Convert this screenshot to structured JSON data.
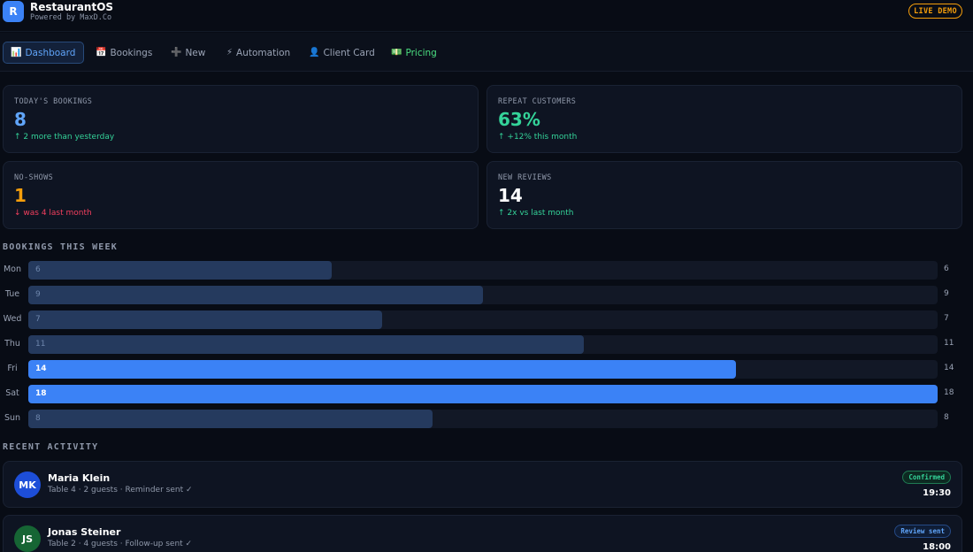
{
  "app": {
    "logo_letter": "R",
    "title": "RestaurantOS",
    "subtitle": "Powered by MaxD.Co",
    "live_badge": "LIVE DEMO"
  },
  "nav": {
    "tabs": [
      {
        "icon": "📊",
        "label": "Dashboard"
      },
      {
        "icon": "📅",
        "label": "Bookings"
      },
      {
        "icon": "➕",
        "label": "New"
      },
      {
        "icon": "⚡",
        "label": "Automation"
      },
      {
        "icon": "👤",
        "label": "Client Card"
      },
      {
        "icon": "💵",
        "label": "Pricing"
      }
    ],
    "active_tab": "Dashboard"
  },
  "stats": [
    {
      "label": "TODAY'S BOOKINGS",
      "value": "8",
      "delta": "↑ 2 more than yesterday"
    },
    {
      "label": "REPEAT CUSTOMERS",
      "value": "63%",
      "delta": "↑ +12% this month"
    },
    {
      "label": "NO-SHOWS",
      "value": "1",
      "delta": "↓ was 4 last month"
    },
    {
      "label": "NEW REVIEWS",
      "value": "14",
      "delta": "↑ 2x vs last month"
    }
  ],
  "week": {
    "title": "BOOKINGS THIS WEEK",
    "max": 18,
    "days": [
      {
        "day": "Mon",
        "value": 6,
        "highlight": false
      },
      {
        "day": "Tue",
        "value": 9,
        "highlight": false
      },
      {
        "day": "Wed",
        "value": 7,
        "highlight": false
      },
      {
        "day": "Thu",
        "value": 11,
        "highlight": false
      },
      {
        "day": "Fri",
        "value": 14,
        "highlight": true
      },
      {
        "day": "Sat",
        "value": 18,
        "highlight": true
      },
      {
        "day": "Sun",
        "value": 8,
        "highlight": false
      }
    ]
  },
  "activity": {
    "title": "RECENT ACTIVITY",
    "items": [
      {
        "initials": "MK",
        "name": "Maria Klein",
        "detail": "Table 4 · 2 guests · Reminder sent ✓",
        "status": "Confirmed",
        "time": "19:30",
        "avatar_color": "#1d4ed8"
      },
      {
        "initials": "JS",
        "name": "Jonas Steiner",
        "detail": "Table 2 · 4 guests · Follow-up sent ✓",
        "status": "Review sent",
        "time": "18:00",
        "avatar_color": "#166534"
      }
    ]
  },
  "colors": {
    "accent": "#3b82f6",
    "positive": "#34d399",
    "warning": "#f59e0b",
    "negative": "#f43f5e"
  }
}
